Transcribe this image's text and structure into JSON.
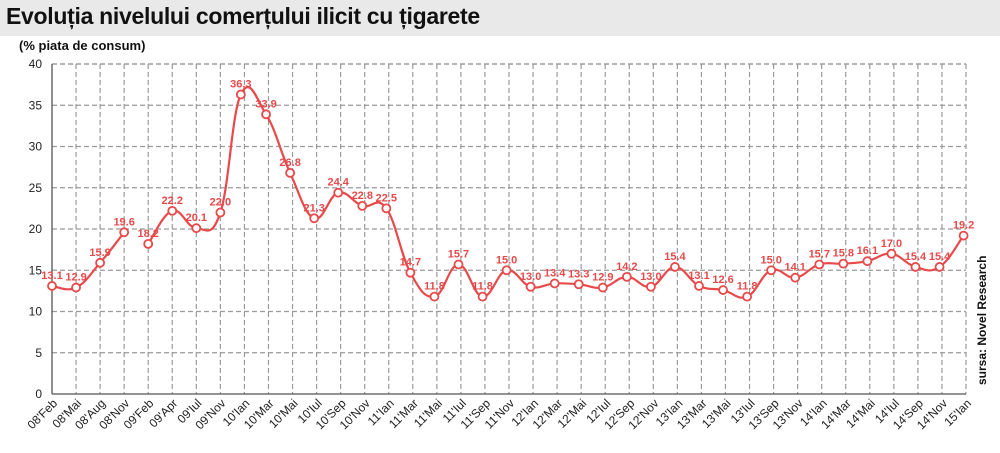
{
  "chart_data": {
    "type": "line",
    "title": "Evoluția nivelului comerțului ilicit cu țigarete",
    "ylabel": "(% piata de consum)",
    "source": "sursa: Novel Research",
    "ylim": [
      0,
      40
    ],
    "yticks": [
      0,
      5,
      10,
      15,
      20,
      25,
      30,
      35,
      40
    ],
    "grid": true,
    "line_color": "#e8494a",
    "categories": [
      "08'Feb",
      "08'Mai",
      "08'Aug",
      "08'Nov",
      "09'Feb",
      "09'Apr",
      "09'Iul",
      "09'Nov",
      "10'Ian",
      "10'Mar",
      "10'Mai",
      "10'Iul",
      "10'Sep",
      "10'Nov",
      "11'Ian",
      "11'Mar",
      "11'Mai",
      "11'Iul",
      "11'Sep",
      "11'Nov",
      "12'Ian",
      "12'Mar",
      "12'Mai",
      "12'Iul",
      "12'Sep",
      "12'Nov",
      "13'Ian",
      "13'Mar",
      "13'Mai",
      "13'Iul",
      "13'Sep",
      "13'Nov",
      "14'Ian",
      "14'Mar",
      "14'Mai",
      "14'Iul",
      "14'Sep",
      "14'Nov",
      "15'Ian"
    ],
    "points": [
      {
        "x": 0.0,
        "y": 13.1,
        "label": "13.1"
      },
      {
        "x": 1.0,
        "y": 12.9,
        "label": "12.9"
      },
      {
        "x": 2.0,
        "y": 15.9,
        "label": "15.9"
      },
      {
        "x": 3.0,
        "y": 19.6,
        "label": "19.6"
      },
      {
        "x": 4.0,
        "y": 18.2,
        "label": "18.2"
      },
      {
        "x": 5.0,
        "y": 22.2,
        "label": "22.2"
      },
      {
        "x": 6.0,
        "y": 20.1,
        "label": "20.1"
      },
      {
        "x": 7.0,
        "y": 22.0,
        "label": "22.0"
      },
      {
        "x": 7.85,
        "y": 36.3,
        "label": "36.3"
      },
      {
        "x": 8.9,
        "y": 33.9,
        "label": "33.9"
      },
      {
        "x": 9.9,
        "y": 26.8,
        "label": "26.8"
      },
      {
        "x": 10.9,
        "y": 21.3,
        "label": "21.3"
      },
      {
        "x": 11.9,
        "y": 24.4,
        "label": "24.4"
      },
      {
        "x": 12.9,
        "y": 22.8,
        "label": "22.8"
      },
      {
        "x": 13.9,
        "y": 22.5,
        "label": "22.5"
      },
      {
        "x": 14.9,
        "y": 14.7,
        "label": "14.7"
      },
      {
        "x": 15.9,
        "y": 11.8,
        "label": "11.8"
      },
      {
        "x": 16.9,
        "y": 15.7,
        "label": "15.7"
      },
      {
        "x": 17.9,
        "y": 11.8,
        "label": "11.8"
      },
      {
        "x": 18.9,
        "y": 15.0,
        "label": "15.0"
      },
      {
        "x": 19.9,
        "y": 13.0,
        "label": "13.0"
      },
      {
        "x": 20.9,
        "y": 13.4,
        "label": "13.4"
      },
      {
        "x": 21.9,
        "y": 13.3,
        "label": "13.3"
      },
      {
        "x": 22.9,
        "y": 12.9,
        "label": "12.9"
      },
      {
        "x": 23.9,
        "y": 14.2,
        "label": "14.2"
      },
      {
        "x": 24.9,
        "y": 13.0,
        "label": "13.0"
      },
      {
        "x": 25.9,
        "y": 15.4,
        "label": "15.4"
      },
      {
        "x": 26.9,
        "y": 13.1,
        "label": "13.1"
      },
      {
        "x": 27.9,
        "y": 12.6,
        "label": "12.6"
      },
      {
        "x": 28.9,
        "y": 11.8,
        "label": "11.8"
      },
      {
        "x": 29.9,
        "y": 15.0,
        "label": "15.0"
      },
      {
        "x": 30.9,
        "y": 14.1,
        "label": "14.1"
      },
      {
        "x": 31.9,
        "y": 15.7,
        "label": "15.7"
      },
      {
        "x": 32.9,
        "y": 15.8,
        "label": "15.8"
      },
      {
        "x": 33.9,
        "y": 16.1,
        "label": "16.1"
      },
      {
        "x": 34.9,
        "y": 17.0,
        "label": "17.0"
      },
      {
        "x": 35.9,
        "y": 15.4,
        "label": "15.4"
      },
      {
        "x": 36.9,
        "y": 15.4,
        "label": "15.4"
      },
      {
        "x": 37.9,
        "y": 19.2,
        "label": "19.2"
      }
    ],
    "segments": [
      [
        0,
        3
      ],
      [
        4,
        38
      ]
    ]
  }
}
